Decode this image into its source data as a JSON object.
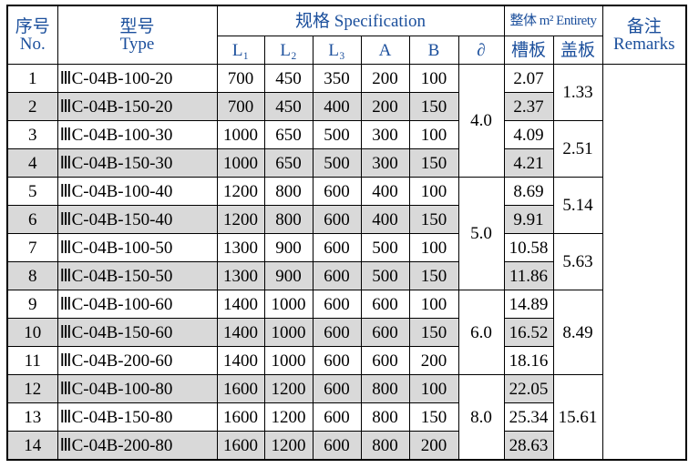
{
  "header": {
    "no": [
      "序号",
      "No."
    ],
    "type": [
      "型号",
      "Type"
    ],
    "spec": "规格 Specification",
    "spec_cols": [
      "L₁",
      "L₂",
      "L₃",
      "A",
      "B",
      "∂"
    ],
    "entirety": "整体 m² Entirety",
    "entirety_cols": [
      "槽板",
      "盖板"
    ],
    "remarks": [
      "备注",
      "Remarks"
    ]
  },
  "table": {
    "rows": [
      {
        "no": "1",
        "type": "ⅢC-04B-100-20",
        "dims": [
          "700",
          "450",
          "350",
          "200",
          "100"
        ],
        "delta": "4.0",
        "groove": "2.07",
        "cover": "1.33"
      },
      {
        "no": "2",
        "type": "ⅢC-04B-150-20",
        "dims": [
          "700",
          "450",
          "400",
          "200",
          "150"
        ],
        "delta": null,
        "groove": "2.37",
        "cover": null
      },
      {
        "no": "3",
        "type": "ⅢC-04B-100-30",
        "dims": [
          "1000",
          "650",
          "500",
          "300",
          "100"
        ],
        "delta": null,
        "groove": "4.09",
        "cover": "2.51"
      },
      {
        "no": "4",
        "type": "ⅢC-04B-150-30",
        "dims": [
          "1000",
          "650",
          "500",
          "300",
          "150"
        ],
        "delta": null,
        "groove": "4.21",
        "cover": null
      },
      {
        "no": "5",
        "type": "ⅢC-04B-100-40",
        "dims": [
          "1200",
          "800",
          "600",
          "400",
          "100"
        ],
        "delta": "5.0",
        "groove": "8.69",
        "cover": "5.14"
      },
      {
        "no": "6",
        "type": "ⅢC-04B-150-40",
        "dims": [
          "1200",
          "800",
          "600",
          "400",
          "150"
        ],
        "delta": null,
        "groove": "9.91",
        "cover": null
      },
      {
        "no": "7",
        "type": "ⅢC-04B-100-50",
        "dims": [
          "1300",
          "900",
          "600",
          "500",
          "100"
        ],
        "delta": null,
        "groove": "10.58",
        "cover": "5.63"
      },
      {
        "no": "8",
        "type": "ⅢC-04B-150-50",
        "dims": [
          "1300",
          "900",
          "600",
          "500",
          "150"
        ],
        "delta": null,
        "groove": "11.86",
        "cover": null
      },
      {
        "no": "9",
        "type": "ⅢC-04B-100-60",
        "dims": [
          "1400",
          "1000",
          "600",
          "600",
          "100"
        ],
        "delta": "6.0",
        "groove": "14.89",
        "cover": "8.49"
      },
      {
        "no": "10",
        "type": "ⅢC-04B-150-60",
        "dims": [
          "1400",
          "1000",
          "600",
          "600",
          "150"
        ],
        "delta": null,
        "groove": "16.52",
        "cover": null
      },
      {
        "no": "11",
        "type": "ⅢC-04B-200-60",
        "dims": [
          "1400",
          "1000",
          "600",
          "600",
          "200"
        ],
        "delta": null,
        "groove": "18.16",
        "cover": null
      },
      {
        "no": "12",
        "type": "ⅢC-04B-100-80",
        "dims": [
          "1600",
          "1200",
          "600",
          "800",
          "100"
        ],
        "delta": "8.0",
        "groove": "22.05",
        "cover": "15.61"
      },
      {
        "no": "13",
        "type": "ⅢC-04B-150-80",
        "dims": [
          "1600",
          "1200",
          "600",
          "800",
          "150"
        ],
        "delta": null,
        "groove": "25.34",
        "cover": null
      },
      {
        "no": "14",
        "type": "ⅢC-04B-200-80",
        "dims": [
          "1600",
          "1200",
          "600",
          "800",
          "200"
        ],
        "delta": null,
        "groove": "28.63",
        "cover": null
      }
    ]
  }
}
